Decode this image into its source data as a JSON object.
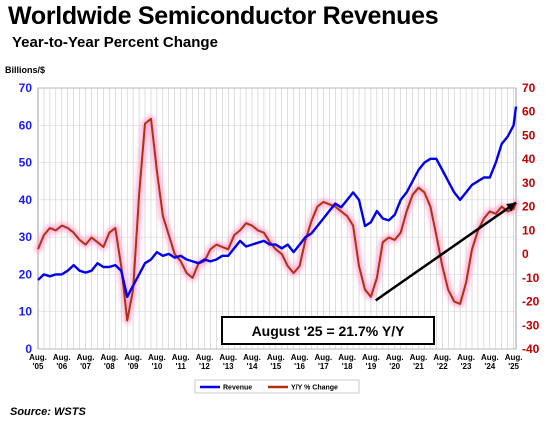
{
  "title": "Worldwide Semiconductor Revenues",
  "subtitle": "Year-to-Year Percent Change",
  "source": "Source: WSTS",
  "chart_data": {
    "type": "line",
    "title": "Worldwide Semiconductor Revenues",
    "subtitle": "Year-to-Year Percent Change",
    "left_axis_unit": "Billions/$",
    "left_ylim": [
      0,
      70
    ],
    "left_ticks": [
      "0",
      "10",
      "20",
      "30",
      "40",
      "50",
      "60",
      "70"
    ],
    "right_ylim": [
      -40,
      70
    ],
    "right_ticks": [
      "-40",
      "-30",
      "-20",
      "-10",
      "0",
      "10",
      "20",
      "30",
      "40",
      "50",
      "60",
      "70"
    ],
    "x_tick_labels": [
      [
        "Aug.",
        "'05"
      ],
      [
        "Aug.",
        "'06"
      ],
      [
        "Aug.",
        "'07"
      ],
      [
        "Aug.",
        "'08"
      ],
      [
        "Aug.",
        "'09"
      ],
      [
        "Aug.",
        "'10"
      ],
      [
        "Aug.",
        "'11"
      ],
      [
        "Aug.",
        "'12"
      ],
      [
        "Aug.",
        "'13"
      ],
      [
        "Aug.",
        "'14"
      ],
      [
        "Aug.",
        "'15"
      ],
      [
        "Aug.",
        "'16"
      ],
      [
        "Aug.",
        "'17"
      ],
      [
        "Aug.",
        "'18"
      ],
      [
        "Aug.",
        "'19"
      ],
      [
        "Aug.",
        "'20"
      ],
      [
        "Aug.",
        "'21"
      ],
      [
        "Aug.",
        "'22"
      ],
      [
        "Aug.",
        "'23"
      ],
      [
        "Aug.",
        "'24"
      ],
      [
        "Aug.",
        "'25"
      ]
    ],
    "grid": true,
    "legend_position": "bottom-center",
    "series": [
      {
        "name": "Revenue",
        "axis": "left",
        "color": "#0000ee",
        "points": [
          [
            0,
            18.5
          ],
          [
            0.25,
            20
          ],
          [
            0.5,
            19.5
          ],
          [
            0.75,
            20
          ],
          [
            1,
            20
          ],
          [
            1.25,
            21
          ],
          [
            1.5,
            22.5
          ],
          [
            1.75,
            21
          ],
          [
            2,
            20.5
          ],
          [
            2.25,
            21
          ],
          [
            2.5,
            23
          ],
          [
            2.75,
            22
          ],
          [
            3,
            22
          ],
          [
            3.25,
            22.5
          ],
          [
            3.5,
            21
          ],
          [
            3.75,
            14
          ],
          [
            4,
            17
          ],
          [
            4.25,
            20
          ],
          [
            4.5,
            23
          ],
          [
            4.75,
            24
          ],
          [
            5,
            26
          ],
          [
            5.25,
            25
          ],
          [
            5.5,
            25.5
          ],
          [
            5.75,
            24.5
          ],
          [
            6,
            25
          ],
          [
            6.25,
            24
          ],
          [
            6.5,
            23.5
          ],
          [
            6.75,
            23
          ],
          [
            7,
            24
          ],
          [
            7.25,
            23.5
          ],
          [
            7.5,
            24
          ],
          [
            7.75,
            25
          ],
          [
            8,
            25
          ],
          [
            8.25,
            27
          ],
          [
            8.5,
            29
          ],
          [
            8.75,
            27.5
          ],
          [
            9,
            28
          ],
          [
            9.25,
            28.5
          ],
          [
            9.5,
            29
          ],
          [
            9.75,
            28
          ],
          [
            10,
            28
          ],
          [
            10.25,
            27
          ],
          [
            10.5,
            28
          ],
          [
            10.75,
            26
          ],
          [
            11,
            28
          ],
          [
            11.25,
            30
          ],
          [
            11.5,
            31
          ],
          [
            11.75,
            33
          ],
          [
            12,
            35
          ],
          [
            12.25,
            37
          ],
          [
            12.5,
            39
          ],
          [
            12.75,
            38
          ],
          [
            13,
            40
          ],
          [
            13.25,
            42
          ],
          [
            13.5,
            40
          ],
          [
            13.75,
            33
          ],
          [
            14,
            34
          ],
          [
            14.25,
            37
          ],
          [
            14.5,
            35
          ],
          [
            14.75,
            34.5
          ],
          [
            15,
            36
          ],
          [
            15.25,
            40
          ],
          [
            15.5,
            42
          ],
          [
            15.75,
            45
          ],
          [
            16,
            48
          ],
          [
            16.25,
            50
          ],
          [
            16.5,
            51
          ],
          [
            16.75,
            51
          ],
          [
            17,
            48
          ],
          [
            17.25,
            45
          ],
          [
            17.5,
            42
          ],
          [
            17.75,
            40
          ],
          [
            18,
            42
          ],
          [
            18.25,
            44
          ],
          [
            18.5,
            45
          ],
          [
            18.75,
            46
          ],
          [
            19,
            46
          ],
          [
            19.25,
            50
          ],
          [
            19.5,
            55
          ],
          [
            19.75,
            57
          ],
          [
            20,
            60
          ],
          [
            20.1,
            65
          ]
        ]
      },
      {
        "name": "Y/Y % Change",
        "axis": "right",
        "color": "#b03010",
        "points": [
          [
            0,
            2
          ],
          [
            0.25,
            8
          ],
          [
            0.5,
            11
          ],
          [
            0.75,
            10
          ],
          [
            1,
            12
          ],
          [
            1.25,
            11
          ],
          [
            1.5,
            9
          ],
          [
            1.75,
            6
          ],
          [
            2,
            4
          ],
          [
            2.25,
            7
          ],
          [
            2.5,
            5
          ],
          [
            2.75,
            3
          ],
          [
            3,
            9
          ],
          [
            3.25,
            11
          ],
          [
            3.5,
            -5
          ],
          [
            3.75,
            -28
          ],
          [
            4,
            -15
          ],
          [
            4.25,
            25
          ],
          [
            4.5,
            55
          ],
          [
            4.75,
            57
          ],
          [
            5,
            35
          ],
          [
            5.25,
            16
          ],
          [
            5.5,
            8
          ],
          [
            5.75,
            0
          ],
          [
            6,
            -3
          ],
          [
            6.25,
            -8
          ],
          [
            6.5,
            -10
          ],
          [
            6.75,
            -4
          ],
          [
            7,
            -3
          ],
          [
            7.25,
            2
          ],
          [
            7.5,
            4
          ],
          [
            7.75,
            3
          ],
          [
            8,
            2
          ],
          [
            8.25,
            8
          ],
          [
            8.5,
            10
          ],
          [
            8.75,
            13
          ],
          [
            9,
            12
          ],
          [
            9.25,
            10
          ],
          [
            9.5,
            9
          ],
          [
            9.75,
            5
          ],
          [
            10,
            2
          ],
          [
            10.25,
            0
          ],
          [
            10.5,
            -5
          ],
          [
            10.75,
            -8
          ],
          [
            11,
            -5
          ],
          [
            11.25,
            6
          ],
          [
            11.5,
            14
          ],
          [
            11.75,
            20
          ],
          [
            12,
            22
          ],
          [
            12.25,
            21
          ],
          [
            12.5,
            20
          ],
          [
            12.75,
            18
          ],
          [
            13,
            16
          ],
          [
            13.25,
            12
          ],
          [
            13.5,
            -5
          ],
          [
            13.75,
            -15
          ],
          [
            14,
            -18
          ],
          [
            14.25,
            -10
          ],
          [
            14.5,
            5
          ],
          [
            14.75,
            7
          ],
          [
            15,
            6
          ],
          [
            15.25,
            9
          ],
          [
            15.5,
            18
          ],
          [
            15.75,
            25
          ],
          [
            16,
            28
          ],
          [
            16.25,
            26
          ],
          [
            16.5,
            20
          ],
          [
            16.75,
            8
          ],
          [
            17,
            -5
          ],
          [
            17.25,
            -15
          ],
          [
            17.5,
            -20
          ],
          [
            17.75,
            -21
          ],
          [
            18,
            -12
          ],
          [
            18.25,
            2
          ],
          [
            18.5,
            10
          ],
          [
            18.75,
            15
          ],
          [
            19,
            18
          ],
          [
            19.25,
            17
          ],
          [
            19.5,
            20
          ],
          [
            19.75,
            18
          ],
          [
            20,
            19
          ],
          [
            20.1,
            21.7
          ]
        ]
      }
    ],
    "trend_line": [
      [
        14.2,
        -19.5
      ],
      [
        20.1,
        21.7
      ]
    ],
    "annotations": [
      {
        "text": "August '25 = 21.7% Y/Y"
      }
    ]
  }
}
